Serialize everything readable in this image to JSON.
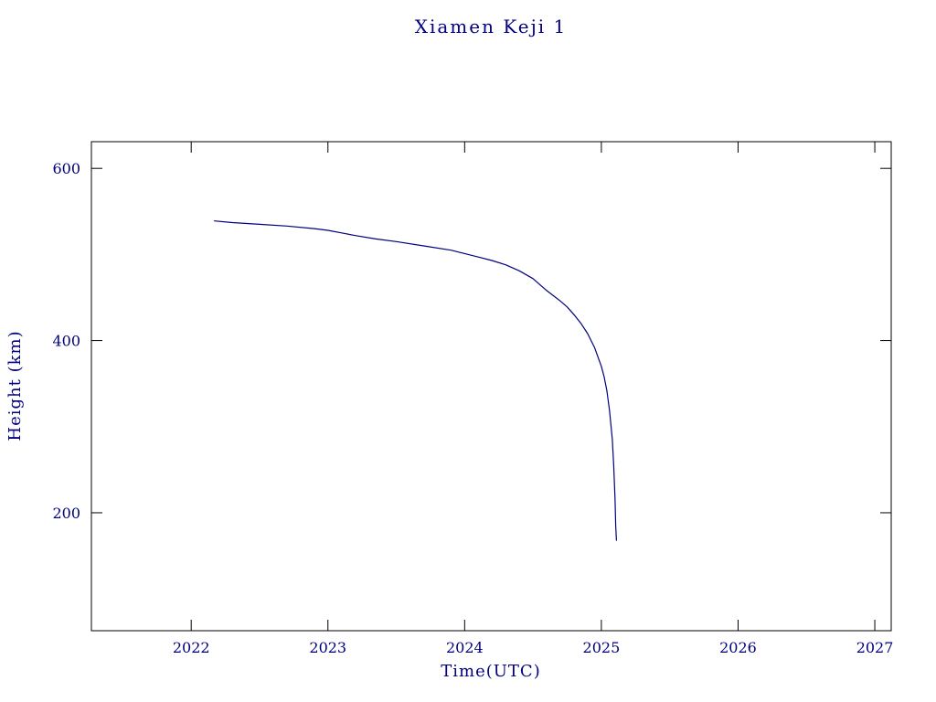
{
  "page": {
    "background": "#ffffff"
  },
  "colors": {
    "text": "#000080",
    "axis": "#000000",
    "line": "#000080",
    "background": "#ffffff"
  },
  "chart_data": {
    "type": "line",
    "title": "Xiamen Keji 1",
    "xlabel": "Time(UTC)",
    "ylabel": "Height (km)",
    "xlim": [
      2021.27,
      2027.12
    ],
    "ylim": [
      63,
      631
    ],
    "xticks": [
      2022,
      2023,
      2024,
      2025,
      2026,
      2027
    ],
    "yticks": [
      200,
      400,
      600
    ],
    "grid": false,
    "legend_position": "none",
    "series": [
      {
        "name": "orbital-height-km",
        "x": [
          2022.17,
          2022.3,
          2022.5,
          2022.7,
          2022.9,
          2023.0,
          2023.1,
          2023.2,
          2023.35,
          2023.5,
          2023.7,
          2023.9,
          2024.0,
          2024.1,
          2024.2,
          2024.3,
          2024.4,
          2024.5,
          2024.6,
          2024.65,
          2024.7,
          2024.75,
          2024.8,
          2024.85,
          2024.9,
          2024.95,
          2025.0,
          2025.02,
          2025.04,
          2025.06,
          2025.08,
          2025.09,
          2025.1,
          2025.105,
          2025.11
        ],
        "y": [
          539,
          537,
          535,
          533,
          530,
          528,
          525,
          522,
          518,
          515,
          510,
          505,
          501,
          497,
          493,
          488,
          481,
          472,
          458,
          452,
          446,
          439,
          430,
          420,
          408,
          392,
          370,
          358,
          342,
          318,
          285,
          255,
          215,
          185,
          168
        ]
      }
    ]
  }
}
